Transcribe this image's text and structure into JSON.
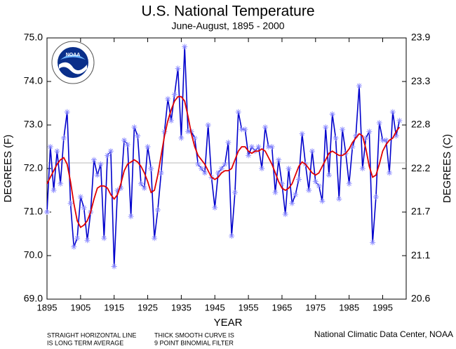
{
  "chart_data": {
    "type": "line",
    "title": "U.S. National Temperature",
    "subtitle": "June-August, 1895 - 2000",
    "xlabel": "YEAR",
    "ylabel": "DEGREES (F)",
    "y2label": "DEGREES (C)",
    "notes": [
      "STRAIGHT HORIZONTAL LINE",
      "IS LONG TERM AVERAGE",
      "THICK SMOOTH CURVE IS",
      "9 POINT BINOMIAL FILTER"
    ],
    "source": "National Climatic Data Center, NOAA",
    "logo_text": "NOAA",
    "x": [
      1895,
      1896,
      1897,
      1898,
      1899,
      1900,
      1901,
      1902,
      1903,
      1904,
      1905,
      1906,
      1907,
      1908,
      1909,
      1910,
      1911,
      1912,
      1913,
      1914,
      1915,
      1916,
      1917,
      1918,
      1919,
      1920,
      1921,
      1922,
      1923,
      1924,
      1925,
      1926,
      1927,
      1928,
      1929,
      1930,
      1931,
      1932,
      1933,
      1934,
      1935,
      1936,
      1937,
      1938,
      1939,
      1940,
      1941,
      1942,
      1943,
      1944,
      1945,
      1946,
      1947,
      1948,
      1949,
      1950,
      1951,
      1952,
      1953,
      1954,
      1955,
      1956,
      1957,
      1958,
      1959,
      1960,
      1961,
      1962,
      1963,
      1964,
      1965,
      1966,
      1967,
      1968,
      1969,
      1970,
      1971,
      1972,
      1973,
      1974,
      1975,
      1976,
      1977,
      1978,
      1979,
      1980,
      1981,
      1982,
      1983,
      1984,
      1985,
      1986,
      1987,
      1988,
      1989,
      1990,
      1991,
      1992,
      1993,
      1994,
      1995,
      1996,
      1997,
      1998,
      1999,
      2000
    ],
    "series": [
      {
        "color": "#0000cc",
        "marker_color": "#8a8aff",
        "marker": "star",
        "values": [
          71.0,
          72.5,
          71.5,
          72.4,
          71.65,
          72.7,
          73.3,
          71.2,
          70.2,
          70.4,
          71.35,
          71.1,
          70.35,
          71.0,
          72.2,
          71.85,
          72.1,
          70.4,
          72.3,
          72.4,
          69.75,
          71.5,
          71.55,
          72.65,
          72.55,
          70.9,
          72.95,
          72.75,
          71.65,
          71.55,
          72.5,
          72.0,
          70.4,
          71.05,
          71.9,
          72.85,
          73.6,
          73.1,
          73.7,
          74.3,
          72.7,
          74.8,
          72.85,
          72.85,
          72.7,
          72.1,
          72.0,
          71.9,
          73.0,
          71.8,
          71.1,
          71.9,
          72.0,
          72.1,
          72.6,
          70.45,
          71.45,
          73.3,
          72.9,
          72.9,
          72.3,
          72.5,
          72.4,
          72.5,
          72.0,
          72.95,
          72.5,
          72.5,
          71.45,
          72.2,
          71.65,
          70.95,
          72.0,
          71.2,
          71.4,
          71.75,
          72.8,
          72.1,
          71.5,
          72.4,
          71.7,
          71.6,
          71.25,
          72.95,
          71.85,
          73.25,
          72.7,
          71.3,
          72.9,
          72.35,
          71.65,
          72.5,
          72.75,
          73.9,
          72.0,
          72.7,
          72.85,
          70.3,
          71.35,
          73.05,
          72.65,
          72.65,
          71.9,
          73.3,
          72.75,
          73.1
        ]
      },
      {
        "color": "#e00000",
        "values": [
          71.65,
          71.8,
          71.95,
          72.1,
          72.2,
          72.25,
          72.1,
          71.7,
          71.2,
          70.8,
          70.65,
          70.7,
          70.8,
          71.0,
          71.3,
          71.55,
          71.6,
          71.6,
          71.55,
          71.4,
          71.3,
          71.4,
          71.65,
          71.95,
          72.1,
          72.15,
          72.2,
          72.15,
          72.05,
          71.9,
          71.7,
          71.45,
          71.5,
          71.85,
          72.3,
          72.75,
          73.1,
          73.35,
          73.55,
          73.65,
          73.65,
          73.55,
          73.2,
          72.8,
          72.5,
          72.3,
          72.2,
          72.1,
          71.95,
          71.8,
          71.75,
          71.8,
          71.9,
          71.95,
          71.95,
          72.0,
          72.2,
          72.4,
          72.5,
          72.5,
          72.4,
          72.35,
          72.4,
          72.4,
          72.45,
          72.4,
          72.25,
          72.1,
          71.9,
          71.7,
          71.55,
          71.5,
          71.55,
          71.65,
          71.85,
          72.05,
          72.15,
          72.1,
          72.0,
          71.9,
          71.85,
          71.9,
          72.05,
          72.2,
          72.35,
          72.4,
          72.35,
          72.3,
          72.3,
          72.35,
          72.45,
          72.6,
          72.7,
          72.8,
          72.75,
          72.45,
          72.05,
          71.8,
          71.85,
          72.1,
          72.4,
          72.55,
          72.65,
          72.7,
          72.85,
          72.95
        ]
      }
    ],
    "average": 72.13,
    "average_color": "#bbbbbb",
    "xlim": [
      1895,
      2002
    ],
    "xticks": [
      1895,
      1905,
      1915,
      1925,
      1935,
      1945,
      1955,
      1965,
      1975,
      1985,
      1995
    ],
    "ylim": [
      69,
      75
    ],
    "yticks": [
      {
        "value": 69,
        "label": "69.0"
      },
      {
        "value": 70,
        "label": "70.0"
      },
      {
        "value": 71,
        "label": "71.0"
      },
      {
        "value": 72,
        "label": "72.0"
      },
      {
        "value": 73,
        "label": "73.0"
      },
      {
        "value": 74,
        "label": "74.0"
      },
      {
        "value": 75,
        "label": "75.0"
      }
    ],
    "y2lim": [
      20.556,
      23.889
    ],
    "y2ticks": [
      {
        "value": 20.556,
        "label": "20.6"
      },
      {
        "value": 21.111,
        "label": "21.1"
      },
      {
        "value": 21.667,
        "label": "21.7"
      },
      {
        "value": 22.222,
        "label": "22.2"
      },
      {
        "value": 22.778,
        "label": "22.8"
      },
      {
        "value": 23.333,
        "label": "23.3"
      },
      {
        "value": 23.889,
        "label": "23.9"
      }
    ]
  }
}
